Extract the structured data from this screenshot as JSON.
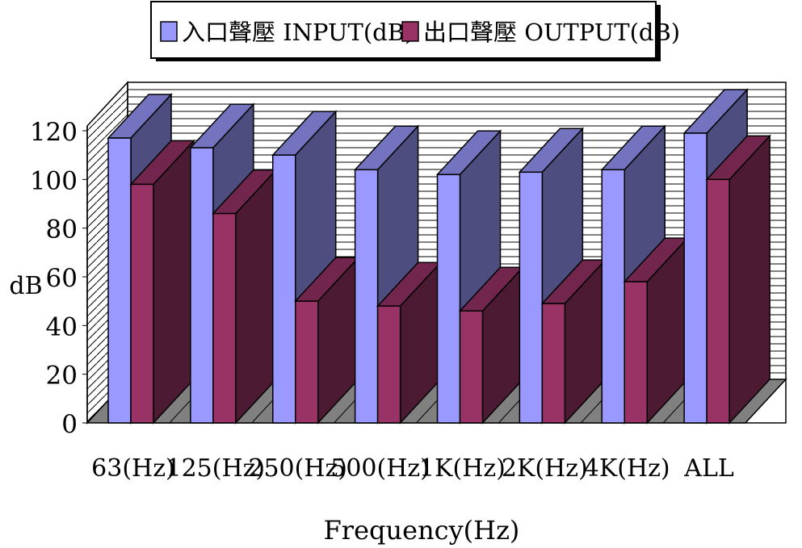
{
  "chart_data": {
    "type": "bar",
    "title": "",
    "xlabel": "Frequency(Hz)",
    "ylabel": "dB",
    "categories": [
      "63(Hz)",
      "125(Hz)",
      "250(Hz)",
      "500(Hz)",
      "1K(Hz)",
      "2K(Hz)",
      "4K(Hz)",
      "ALL"
    ],
    "series": [
      {
        "name": "入口聲壓 INPUT(dB)",
        "values": [
          117,
          113,
          110,
          104,
          102,
          103,
          104,
          119
        ],
        "color": "#9999ff"
      },
      {
        "name": "出口聲壓 OUTPUT(dB)",
        "values": [
          98,
          86,
          50,
          48,
          46,
          49,
          58,
          100
        ],
        "color": "#993366"
      }
    ],
    "yticks": [
      0,
      20,
      40,
      60,
      80,
      100,
      120
    ],
    "ylim": [
      0,
      120
    ],
    "legend_position": "top",
    "grid": true,
    "three_d": true
  }
}
